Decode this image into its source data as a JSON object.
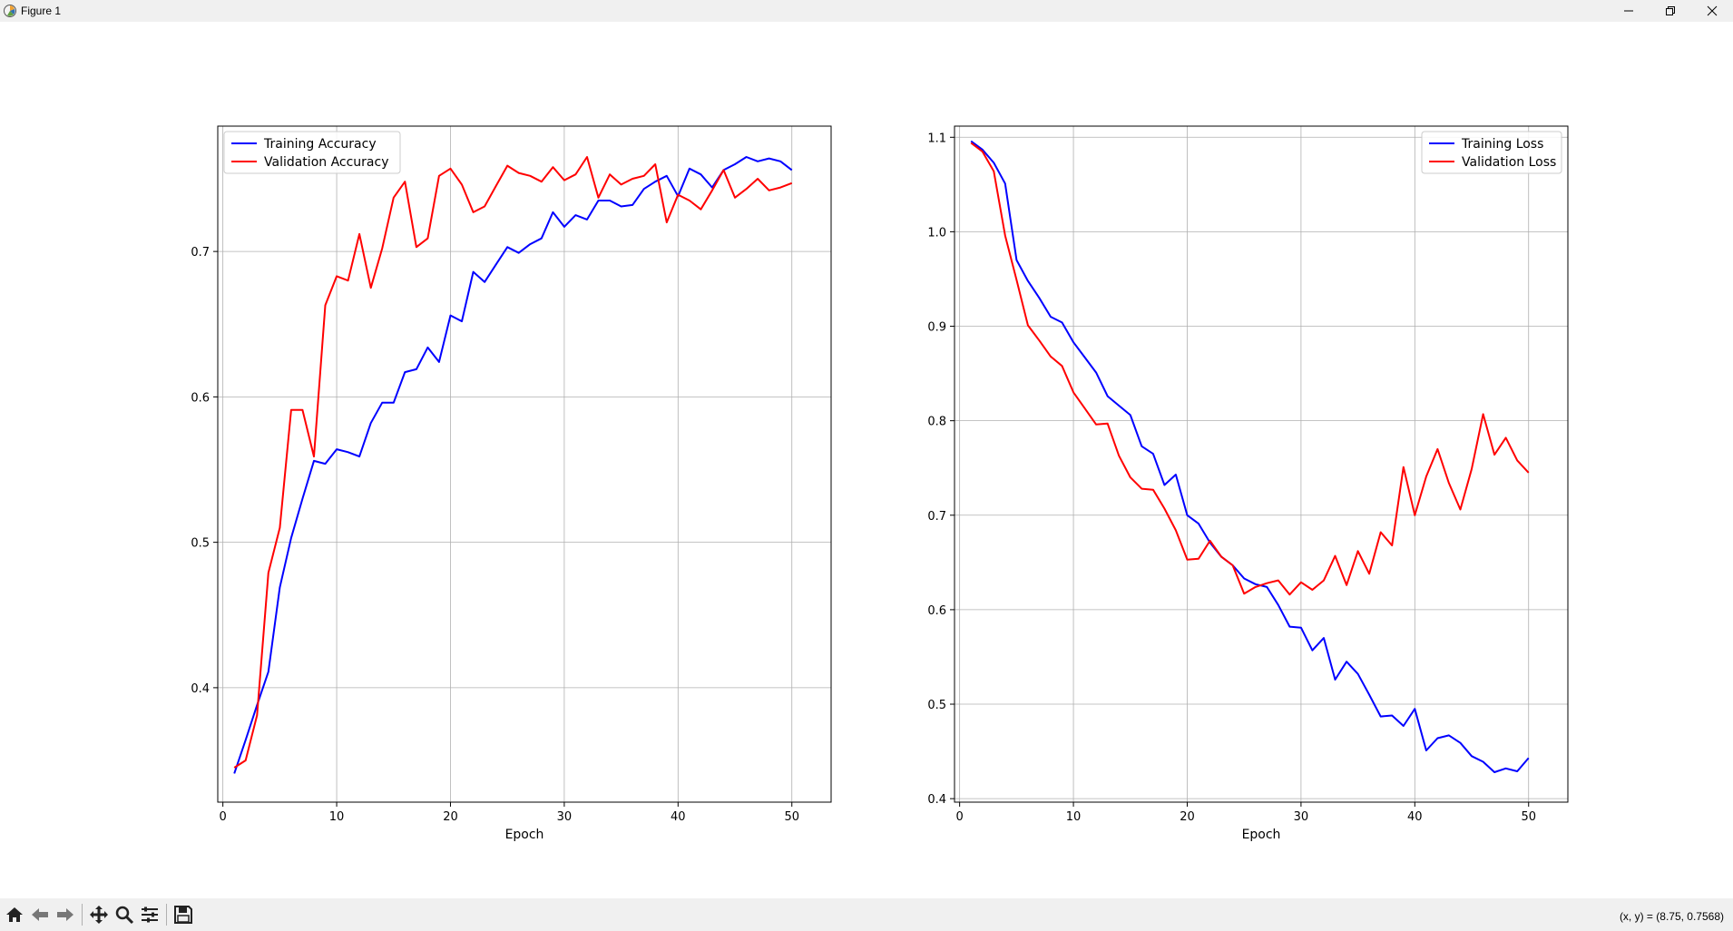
{
  "window": {
    "title": "Figure 1"
  },
  "toolbar": {
    "buttons": [
      "home-icon",
      "back-icon",
      "forward-icon",
      "pan-icon",
      "zoom-icon",
      "configure-subplots-icon",
      "save-icon"
    ],
    "coords": "(x, y) = (8.75, 0.7568)"
  },
  "chart_data": [
    {
      "type": "line",
      "title": "",
      "xlabel": "Epoch",
      "ylabel": "",
      "xlim": [
        -0.45,
        53.45
      ],
      "ylim": [
        0.3213,
        0.7862
      ],
      "xticks": [
        0,
        10,
        20,
        30,
        40,
        50
      ],
      "yticks": [
        0.4,
        0.5,
        0.6,
        0.7
      ],
      "grid": true,
      "legend": "top-left",
      "x": [
        1,
        2,
        3,
        4,
        5,
        6,
        7,
        8,
        9,
        10,
        11,
        12,
        13,
        14,
        15,
        16,
        17,
        18,
        19,
        20,
        21,
        22,
        23,
        24,
        25,
        26,
        27,
        28,
        29,
        30,
        31,
        32,
        33,
        34,
        35,
        36,
        37,
        38,
        39,
        40,
        41,
        42,
        43,
        44,
        45,
        46,
        47,
        48,
        49,
        50
      ],
      "series": [
        {
          "name": "Training Accuracy",
          "color": "#0000ff",
          "values": [
            0.341,
            0.364,
            0.388,
            0.411,
            0.469,
            0.503,
            0.53,
            0.556,
            0.554,
            0.564,
            0.562,
            0.559,
            0.582,
            0.596,
            0.596,
            0.617,
            0.619,
            0.634,
            0.624,
            0.656,
            0.652,
            0.686,
            0.679,
            0.691,
            0.703,
            0.699,
            0.705,
            0.709,
            0.727,
            0.717,
            0.725,
            0.722,
            0.735,
            0.735,
            0.731,
            0.732,
            0.743,
            0.748,
            0.752,
            0.738,
            0.757,
            0.753,
            0.744,
            0.756,
            0.76,
            0.765,
            0.762,
            0.764,
            0.762,
            0.756
          ]
        },
        {
          "name": "Validation Accuracy",
          "color": "#ff0000",
          "values": [
            0.345,
            0.35,
            0.381,
            0.479,
            0.51,
            0.591,
            0.591,
            0.559,
            0.663,
            0.683,
            0.68,
            0.712,
            0.675,
            0.702,
            0.737,
            0.748,
            0.703,
            0.709,
            0.752,
            0.757,
            0.746,
            0.727,
            0.731,
            0.745,
            0.759,
            0.754,
            0.752,
            0.748,
            0.758,
            0.749,
            0.753,
            0.765,
            0.737,
            0.753,
            0.746,
            0.75,
            0.752,
            0.76,
            0.72,
            0.739,
            0.735,
            0.729,
            0.742,
            0.756,
            0.737,
            0.743,
            0.75,
            0.742,
            0.744,
            0.747
          ]
        }
      ]
    },
    {
      "type": "line",
      "title": "",
      "xlabel": "Epoch",
      "ylabel": "",
      "xlim": [
        -0.45,
        53.45
      ],
      "ylim": [
        0.3963,
        1.1118
      ],
      "xticks": [
        0,
        10,
        20,
        30,
        40,
        50
      ],
      "yticks": [
        0.4,
        0.5,
        0.6,
        0.7,
        0.8,
        0.9,
        1.0,
        1.1
      ],
      "ytick_labels": [
        "0.4",
        "0.5",
        "0.6",
        "0.7",
        "0.8",
        "0.9",
        "1.0",
        "1.1"
      ],
      "grid": true,
      "legend": "top-right",
      "x": [
        1,
        2,
        3,
        4,
        5,
        6,
        7,
        8,
        9,
        10,
        11,
        12,
        13,
        14,
        15,
        16,
        17,
        18,
        19,
        20,
        21,
        22,
        23,
        24,
        25,
        26,
        27,
        28,
        29,
        30,
        31,
        32,
        33,
        34,
        35,
        36,
        37,
        38,
        39,
        40,
        41,
        42,
        43,
        44,
        45,
        46,
        47,
        48,
        49,
        50
      ],
      "series": [
        {
          "name": "Training Loss",
          "color": "#0000ff",
          "values": [
            1.096,
            1.087,
            1.073,
            1.051,
            0.97,
            0.948,
            0.93,
            0.91,
            0.904,
            0.883,
            0.867,
            0.851,
            0.826,
            0.816,
            0.806,
            0.773,
            0.765,
            0.732,
            0.743,
            0.7,
            0.691,
            0.671,
            0.656,
            0.647,
            0.633,
            0.627,
            0.624,
            0.605,
            0.582,
            0.581,
            0.557,
            0.57,
            0.526,
            0.545,
            0.532,
            0.51,
            0.487,
            0.488,
            0.477,
            0.495,
            0.451,
            0.464,
            0.467,
            0.459,
            0.445,
            0.439,
            0.428,
            0.432,
            0.429,
            0.443
          ]
        },
        {
          "name": "Validation Loss",
          "color": "#ff0000",
          "values": [
            1.094,
            1.085,
            1.064,
            0.996,
            0.949,
            0.901,
            0.885,
            0.868,
            0.858,
            0.83,
            0.813,
            0.796,
            0.797,
            0.763,
            0.74,
            0.728,
            0.727,
            0.707,
            0.684,
            0.653,
            0.654,
            0.673,
            0.656,
            0.647,
            0.617,
            0.624,
            0.628,
            0.631,
            0.616,
            0.629,
            0.621,
            0.631,
            0.657,
            0.626,
            0.662,
            0.638,
            0.682,
            0.668,
            0.751,
            0.7,
            0.741,
            0.77,
            0.734,
            0.706,
            0.749,
            0.807,
            0.764,
            0.782,
            0.758,
            0.745
          ]
        }
      ]
    }
  ]
}
